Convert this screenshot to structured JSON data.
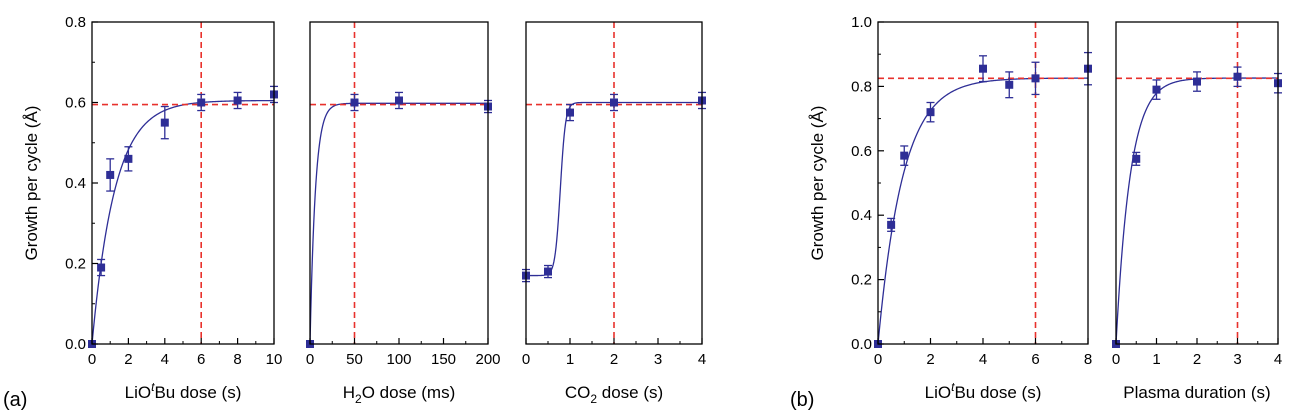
{
  "panel_labels": {
    "a": "(a)",
    "b": "(b)"
  },
  "ylabel": "Growth per cycle (Å)",
  "colors": {
    "data": "#2e2e96",
    "fit": "#2e2e96",
    "reference": "#e8312c"
  },
  "chart_data": [
    {
      "type": "scatter",
      "panel": "a",
      "xlabel": {
        "pre": "LiO",
        "sup": "t",
        "post": "Bu dose (s)"
      },
      "xlim": [
        0,
        10
      ],
      "xticks": [
        0,
        2,
        4,
        6,
        8,
        10
      ],
      "ylim": [
        0,
        0.8
      ],
      "yticks": [
        0.0,
        0.2,
        0.4,
        0.6,
        0.8
      ],
      "ytick_labels": [
        "0.0",
        "0.2",
        "0.4",
        "0.6",
        "0.8"
      ],
      "x": [
        0,
        0.5,
        1,
        2,
        4,
        6,
        8,
        10
      ],
      "y": [
        0.0,
        0.19,
        0.42,
        0.46,
        0.55,
        0.6,
        0.605,
        0.62
      ],
      "err": [
        0,
        0.02,
        0.04,
        0.03,
        0.04,
        0.02,
        0.02,
        0.02
      ],
      "fit": {
        "model": "exponential saturation",
        "ymax": 0.605,
        "tau": 1.25
      },
      "ref_x": 6,
      "ref_y": 0.595
    },
    {
      "type": "scatter",
      "panel": "a",
      "xlabel": {
        "pre": "H",
        "sub": "2",
        "post": "O dose (ms)"
      },
      "xlim": [
        0,
        200
      ],
      "xticks": [
        0,
        50,
        100,
        150,
        200
      ],
      "ylim": [
        0,
        0.8
      ],
      "x": [
        0,
        50,
        100,
        200
      ],
      "y": [
        0.0,
        0.6,
        0.605,
        0.59
      ],
      "err": [
        0,
        0.02,
        0.02,
        0.015
      ],
      "fit": {
        "model": "exponential saturation",
        "ymax": 0.598,
        "tau": 6
      },
      "ref_x": 50,
      "ref_y": 0.595
    },
    {
      "type": "scatter",
      "panel": "a",
      "xlabel": {
        "pre": "CO",
        "sub": "2",
        "post": " dose (s)"
      },
      "xlim": [
        0,
        4
      ],
      "xticks": [
        0,
        1,
        2,
        3,
        4
      ],
      "ylim": [
        0,
        0.8
      ],
      "x": [
        0,
        0.5,
        1,
        2,
        4
      ],
      "y": [
        0.17,
        0.18,
        0.575,
        0.6,
        0.605
      ],
      "err": [
        0.015,
        0.015,
        0.02,
        0.02,
        0.02
      ],
      "fit": {
        "model": "sigmoid",
        "ylow": 0.17,
        "yhigh": 0.6,
        "x0": 0.78,
        "k": 0.06
      },
      "ref_x": 2,
      "ref_y": 0.595
    },
    {
      "type": "scatter",
      "panel": "b",
      "xlabel": {
        "pre": "LiO",
        "sup": "t",
        "post": "Bu dose (s)"
      },
      "xlim": [
        0,
        8
      ],
      "xticks": [
        0,
        2,
        4,
        6,
        8
      ],
      "ylim": [
        0,
        1.0
      ],
      "yticks": [
        0.0,
        0.2,
        0.4,
        0.6,
        0.8,
        1.0
      ],
      "ytick_labels": [
        "0.0",
        "0.2",
        "0.4",
        "0.6",
        "0.8",
        "1.0"
      ],
      "x": [
        0,
        0.5,
        1,
        2,
        4,
        5,
        6,
        8
      ],
      "y": [
        0.0,
        0.37,
        0.585,
        0.72,
        0.855,
        0.805,
        0.825,
        0.855
      ],
      "err": [
        0,
        0.02,
        0.03,
        0.03,
        0.04,
        0.04,
        0.05,
        0.05
      ],
      "fit": {
        "model": "exponential saturation",
        "ymax": 0.826,
        "tau": 0.95
      },
      "ref_x": 6,
      "ref_y": 0.825
    },
    {
      "type": "scatter",
      "panel": "b",
      "xlabel": {
        "pre": "Plasma duration (s)"
      },
      "xlim": [
        0,
        4
      ],
      "xticks": [
        0,
        1,
        2,
        3,
        4
      ],
      "ylim": [
        0,
        1.0
      ],
      "x": [
        0,
        0.5,
        1,
        2,
        3,
        4
      ],
      "y": [
        0.0,
        0.575,
        0.79,
        0.815,
        0.83,
        0.81
      ],
      "err": [
        0,
        0.02,
        0.03,
        0.03,
        0.03,
        0.03
      ],
      "fit": {
        "model": "exponential saturation",
        "ymax": 0.826,
        "tau": 0.35
      },
      "ref_x": 3,
      "ref_y": 0.825
    }
  ]
}
